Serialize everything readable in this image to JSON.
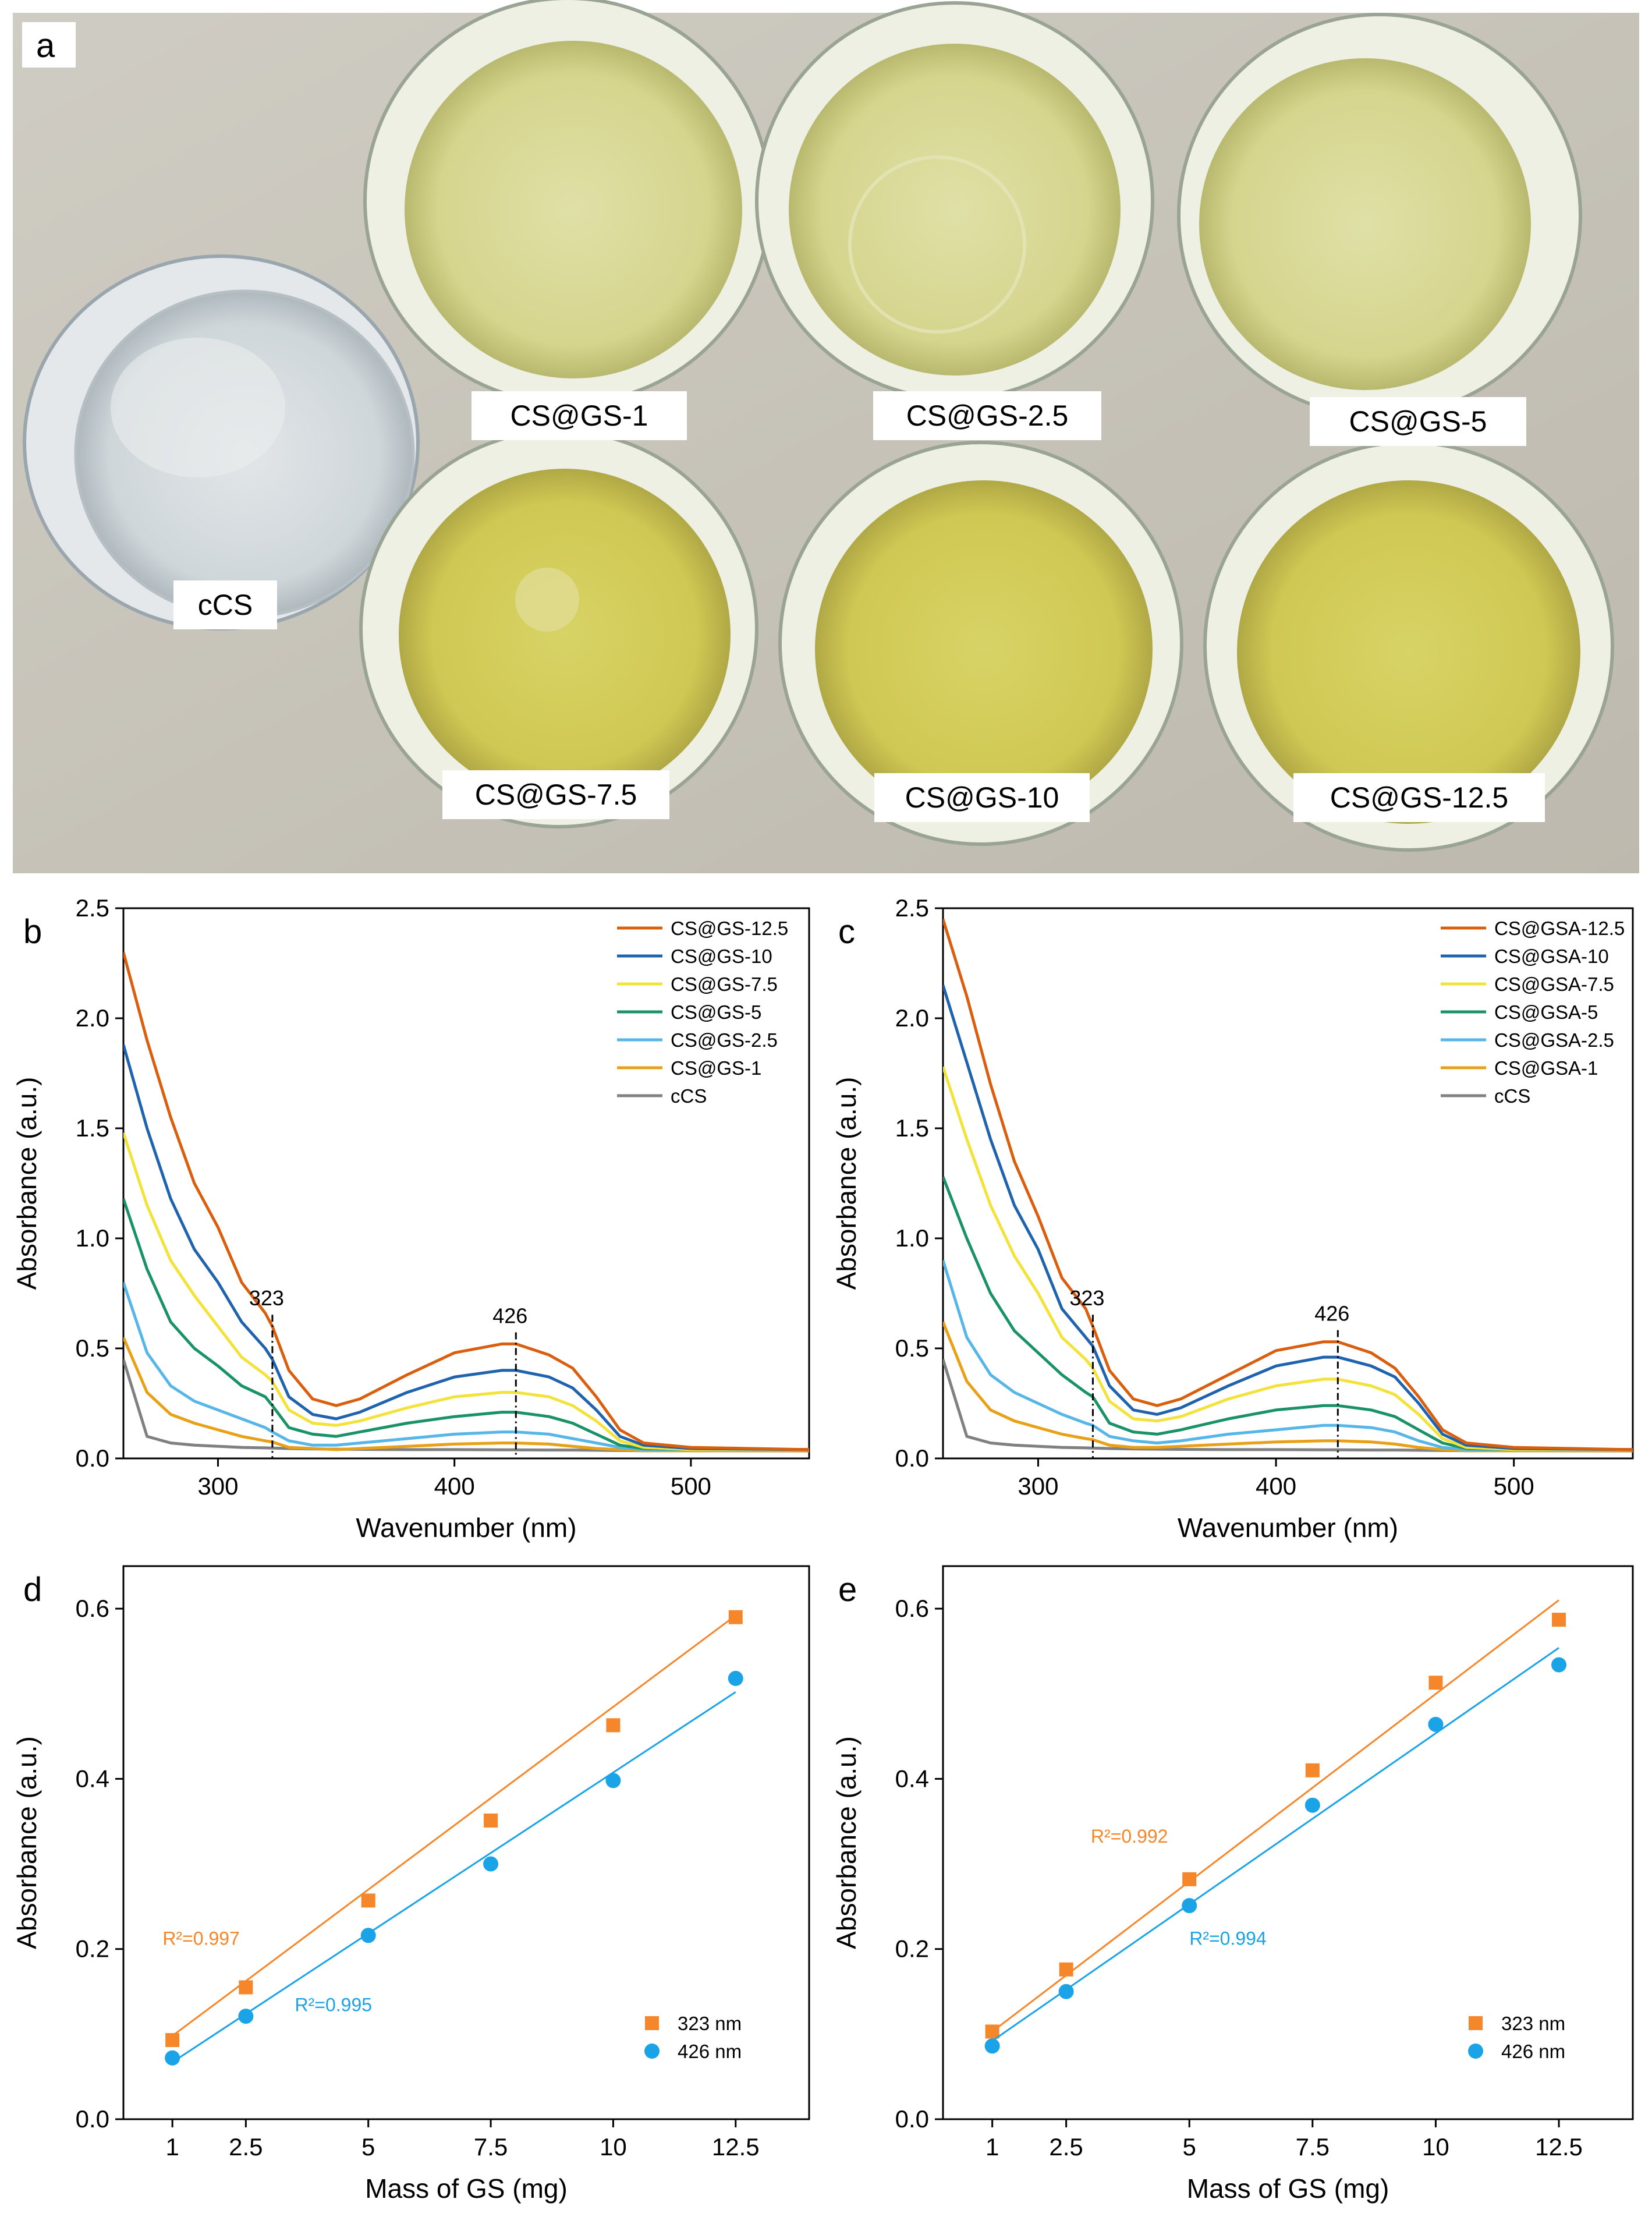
{
  "photo": {
    "panel_label": "a",
    "samples": [
      "cCS",
      "CS@GS-1",
      "CS@GS-2.5",
      "CS@GS-5",
      "CS@GS-7.5",
      "CS@GS-10",
      "CS@GS-12.5"
    ],
    "colors": {
      "background": "#c9c6bd",
      "empty_dish": "#d8dde0",
      "solution_light": "#dcdc9c",
      "solution_dark": "#d3cf5c",
      "rim": "#eef0e6"
    }
  },
  "chart_data": [
    {
      "panel": "b",
      "type": "line",
      "xlabel": "Wavenumber (nm)",
      "ylabel": "Absorbance (a.u.)",
      "xlim": [
        260,
        550
      ],
      "ylim": [
        0,
        2.5
      ],
      "xticks": [
        300,
        400,
        500
      ],
      "yticks": [
        0.0,
        0.5,
        1.0,
        1.5,
        2.0,
        2.5
      ],
      "ytick_labels": [
        "0.0",
        "0.5",
        "1.0",
        "1.5",
        "2.0",
        "2.5"
      ],
      "legend": "top-right",
      "annotations": [
        {
          "text": "323",
          "x": 323
        },
        {
          "text": "426",
          "x": 426
        }
      ],
      "x": [
        260,
        270,
        280,
        290,
        300,
        310,
        320,
        323,
        330,
        340,
        350,
        360,
        380,
        400,
        420,
        426,
        440,
        450,
        460,
        470,
        480,
        500,
        550
      ],
      "series": [
        {
          "name": "CS@GS-12.5",
          "color": "#d95f0e",
          "values": [
            2.3,
            1.9,
            1.55,
            1.25,
            1.05,
            0.8,
            0.66,
            0.6,
            0.4,
            0.27,
            0.24,
            0.27,
            0.38,
            0.48,
            0.52,
            0.52,
            0.47,
            0.41,
            0.28,
            0.13,
            0.07,
            0.05,
            0.04
          ]
        },
        {
          "name": "CS@GS-10",
          "color": "#1f62ad",
          "values": [
            1.88,
            1.5,
            1.18,
            0.95,
            0.8,
            0.62,
            0.5,
            0.45,
            0.28,
            0.2,
            0.18,
            0.21,
            0.3,
            0.37,
            0.4,
            0.4,
            0.37,
            0.32,
            0.22,
            0.1,
            0.06,
            0.045,
            0.04
          ]
        },
        {
          "name": "CS@GS-7.5",
          "color": "#f2e23a",
          "values": [
            1.48,
            1.15,
            0.9,
            0.74,
            0.6,
            0.46,
            0.38,
            0.35,
            0.22,
            0.16,
            0.15,
            0.17,
            0.23,
            0.28,
            0.3,
            0.3,
            0.28,
            0.24,
            0.17,
            0.08,
            0.05,
            0.04,
            0.04
          ]
        },
        {
          "name": "CS@GS-5",
          "color": "#1a9267",
          "values": [
            1.18,
            0.86,
            0.62,
            0.5,
            0.42,
            0.33,
            0.28,
            0.24,
            0.14,
            0.11,
            0.1,
            0.12,
            0.16,
            0.19,
            0.21,
            0.21,
            0.19,
            0.16,
            0.11,
            0.06,
            0.045,
            0.04,
            0.04
          ]
        },
        {
          "name": "CS@GS-2.5",
          "color": "#56b6e8",
          "values": [
            0.8,
            0.48,
            0.33,
            0.26,
            0.22,
            0.18,
            0.14,
            0.12,
            0.08,
            0.06,
            0.06,
            0.07,
            0.09,
            0.11,
            0.12,
            0.12,
            0.11,
            0.09,
            0.07,
            0.05,
            0.04,
            0.04,
            0.04
          ]
        },
        {
          "name": "CS@GS-1",
          "color": "#e8a117",
          "values": [
            0.55,
            0.3,
            0.2,
            0.16,
            0.13,
            0.1,
            0.08,
            0.075,
            0.05,
            0.045,
            0.04,
            0.045,
            0.055,
            0.065,
            0.07,
            0.07,
            0.065,
            0.055,
            0.045,
            0.04,
            0.035,
            0.035,
            0.035
          ]
        },
        {
          "name": "cCS",
          "color": "#808080",
          "values": [
            0.45,
            0.1,
            0.07,
            0.06,
            0.055,
            0.05,
            0.048,
            0.047,
            0.045,
            0.043,
            0.042,
            0.041,
            0.04,
            0.04,
            0.039,
            0.039,
            0.038,
            0.038,
            0.037,
            0.036,
            0.035,
            0.035,
            0.034
          ]
        }
      ]
    },
    {
      "panel": "c",
      "type": "line",
      "xlabel": "Wavenumber (nm)",
      "ylabel": "Absorbance (a.u.)",
      "xlim": [
        260,
        550
      ],
      "ylim": [
        0,
        2.5
      ],
      "xticks": [
        300,
        400,
        500
      ],
      "yticks": [
        0.0,
        0.5,
        1.0,
        1.5,
        2.0,
        2.5
      ],
      "ytick_labels": [
        "0.0",
        "0.5",
        "1.0",
        "1.5",
        "2.0",
        "2.5"
      ],
      "legend": "top-right",
      "annotations": [
        {
          "text": "323",
          "x": 323
        },
        {
          "text": "426",
          "x": 426
        }
      ],
      "x": [
        260,
        270,
        280,
        290,
        300,
        310,
        320,
        323,
        330,
        340,
        350,
        360,
        380,
        400,
        420,
        426,
        440,
        450,
        460,
        470,
        480,
        500,
        550
      ],
      "series": [
        {
          "name": "CS@GSA-12.5",
          "color": "#d95f0e",
          "values": [
            2.45,
            2.1,
            1.7,
            1.35,
            1.1,
            0.82,
            0.68,
            0.6,
            0.4,
            0.27,
            0.24,
            0.27,
            0.38,
            0.49,
            0.53,
            0.53,
            0.48,
            0.41,
            0.28,
            0.13,
            0.07,
            0.05,
            0.04
          ]
        },
        {
          "name": "CS@GSA-10",
          "color": "#1f62ad",
          "values": [
            2.15,
            1.8,
            1.45,
            1.15,
            0.95,
            0.68,
            0.55,
            0.51,
            0.33,
            0.22,
            0.2,
            0.23,
            0.33,
            0.42,
            0.46,
            0.46,
            0.42,
            0.37,
            0.25,
            0.11,
            0.06,
            0.045,
            0.04
          ]
        },
        {
          "name": "CS@GSA-7.5",
          "color": "#f2e23a",
          "values": [
            1.78,
            1.45,
            1.15,
            0.92,
            0.75,
            0.55,
            0.45,
            0.41,
            0.26,
            0.18,
            0.17,
            0.19,
            0.27,
            0.33,
            0.36,
            0.36,
            0.33,
            0.29,
            0.2,
            0.09,
            0.05,
            0.04,
            0.04
          ]
        },
        {
          "name": "CS@GSA-5",
          "color": "#1a9267",
          "values": [
            1.28,
            1.0,
            0.75,
            0.58,
            0.48,
            0.38,
            0.3,
            0.28,
            0.16,
            0.12,
            0.11,
            0.13,
            0.18,
            0.22,
            0.24,
            0.24,
            0.22,
            0.19,
            0.13,
            0.07,
            0.045,
            0.04,
            0.04
          ]
        },
        {
          "name": "CS@GSA-2.5",
          "color": "#56b6e8",
          "values": [
            0.9,
            0.55,
            0.38,
            0.3,
            0.25,
            0.2,
            0.16,
            0.15,
            0.1,
            0.08,
            0.07,
            0.08,
            0.11,
            0.13,
            0.15,
            0.15,
            0.14,
            0.12,
            0.08,
            0.05,
            0.04,
            0.04,
            0.04
          ]
        },
        {
          "name": "CS@GSA-1",
          "color": "#e8a117",
          "values": [
            0.62,
            0.35,
            0.22,
            0.17,
            0.14,
            0.11,
            0.09,
            0.085,
            0.06,
            0.05,
            0.05,
            0.055,
            0.065,
            0.075,
            0.08,
            0.08,
            0.075,
            0.065,
            0.05,
            0.04,
            0.035,
            0.035,
            0.035
          ]
        },
        {
          "name": "cCS",
          "color": "#808080",
          "values": [
            0.45,
            0.1,
            0.07,
            0.06,
            0.055,
            0.05,
            0.048,
            0.047,
            0.045,
            0.043,
            0.042,
            0.041,
            0.04,
            0.04,
            0.039,
            0.039,
            0.038,
            0.038,
            0.037,
            0.036,
            0.035,
            0.035,
            0.034
          ]
        }
      ]
    },
    {
      "panel": "d",
      "type": "scatter",
      "xlabel": "Mass of GS (mg)",
      "ylabel": "Absorbance (a.u.)",
      "xlim": [
        0,
        14
      ],
      "ylim": [
        0,
        0.65
      ],
      "xticks": [
        1,
        2.5,
        5,
        7.5,
        10,
        12.5
      ],
      "xtick_labels": [
        "1",
        "2.5",
        "5",
        "7.5",
        "10",
        "12.5"
      ],
      "yticks": [
        0.0,
        0.2,
        0.4,
        0.6
      ],
      "ytick_labels": [
        "0.0",
        "0.2",
        "0.4",
        "0.6"
      ],
      "legend": "bottom-right",
      "x": [
        1,
        2.5,
        5,
        7.5,
        10,
        12.5
      ],
      "series": [
        {
          "name": "323 nm",
          "marker": "square",
          "color": "#f5862a",
          "values": [
            0.093,
            0.155,
            0.257,
            0.351,
            0.463,
            0.59
          ],
          "fit": [
            0.098,
            0.592
          ],
          "r2": "R²=0.997"
        },
        {
          "name": "426 nm",
          "marker": "circle",
          "color": "#1ba3e8",
          "values": [
            0.072,
            0.121,
            0.216,
            0.3,
            0.398,
            0.518
          ],
          "fit": [
            0.067,
            0.502
          ],
          "r2": "R²=0.995"
        }
      ]
    },
    {
      "panel": "e",
      "type": "scatter",
      "xlabel": "Mass of GS (mg)",
      "ylabel": "Absorbance (a.u.)",
      "xlim": [
        0,
        14
      ],
      "ylim": [
        0,
        0.65
      ],
      "xticks": [
        1,
        2.5,
        5,
        7.5,
        10,
        12.5
      ],
      "xtick_labels": [
        "1",
        "2.5",
        "5",
        "7.5",
        "10",
        "12.5"
      ],
      "yticks": [
        0.0,
        0.2,
        0.4,
        0.6
      ],
      "ytick_labels": [
        "0.0",
        "0.2",
        "0.4",
        "0.6"
      ],
      "legend": "bottom-right",
      "x": [
        1,
        2.5,
        5,
        7.5,
        10,
        12.5
      ],
      "series": [
        {
          "name": "323 nm",
          "marker": "square",
          "color": "#f5862a",
          "values": [
            0.103,
            0.176,
            0.282,
            0.41,
            0.513,
            0.587
          ],
          "fit": [
            0.103,
            0.61
          ],
          "r2": "R²=0.992"
        },
        {
          "name": "426 nm",
          "marker": "circle",
          "color": "#1ba3e8",
          "values": [
            0.086,
            0.15,
            0.251,
            0.369,
            0.464,
            0.534
          ],
          "fit": [
            0.092,
            0.554
          ],
          "r2": "R²=0.994"
        }
      ]
    }
  ]
}
